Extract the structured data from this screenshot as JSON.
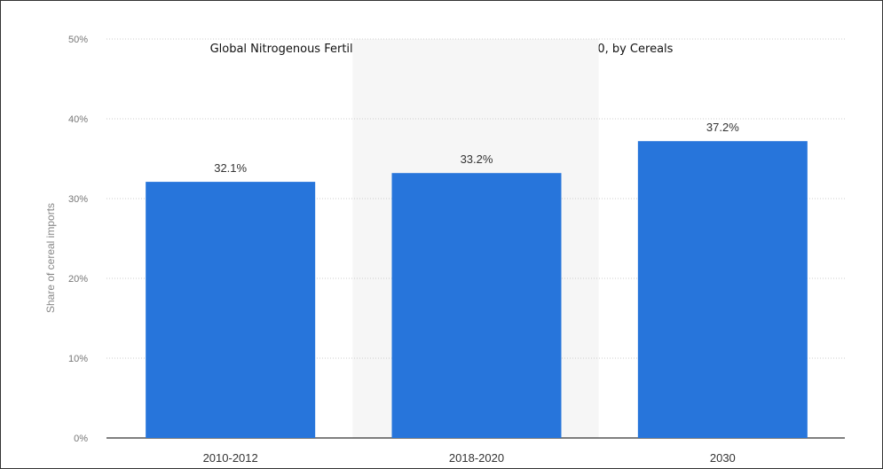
{
  "chart_data": {
    "type": "bar",
    "title": "Global Nitrogenous Fertilizer spending worldwide from 2010 to 2030, by Cereals",
    "xlabel": "",
    "ylabel": "Share of cereal imports",
    "categories": [
      "2010-2012",
      "2018-2020",
      "2030"
    ],
    "values": [
      32.1,
      33.2,
      37.2
    ],
    "data_labels": [
      "32.1%",
      "33.2%",
      "37.2%"
    ],
    "ylim": [
      0,
      50
    ],
    "yticks": [
      0,
      10,
      20,
      30,
      40,
      50
    ],
    "ytick_labels": [
      "0%",
      "10%",
      "20%",
      "30%",
      "40%",
      "50%"
    ],
    "grid": true,
    "legend": "none",
    "colors": {
      "bar": "#2775db",
      "highlight_band": "#f6f6f6",
      "grid": "#cccccc",
      "baseline": "#333333"
    }
  }
}
